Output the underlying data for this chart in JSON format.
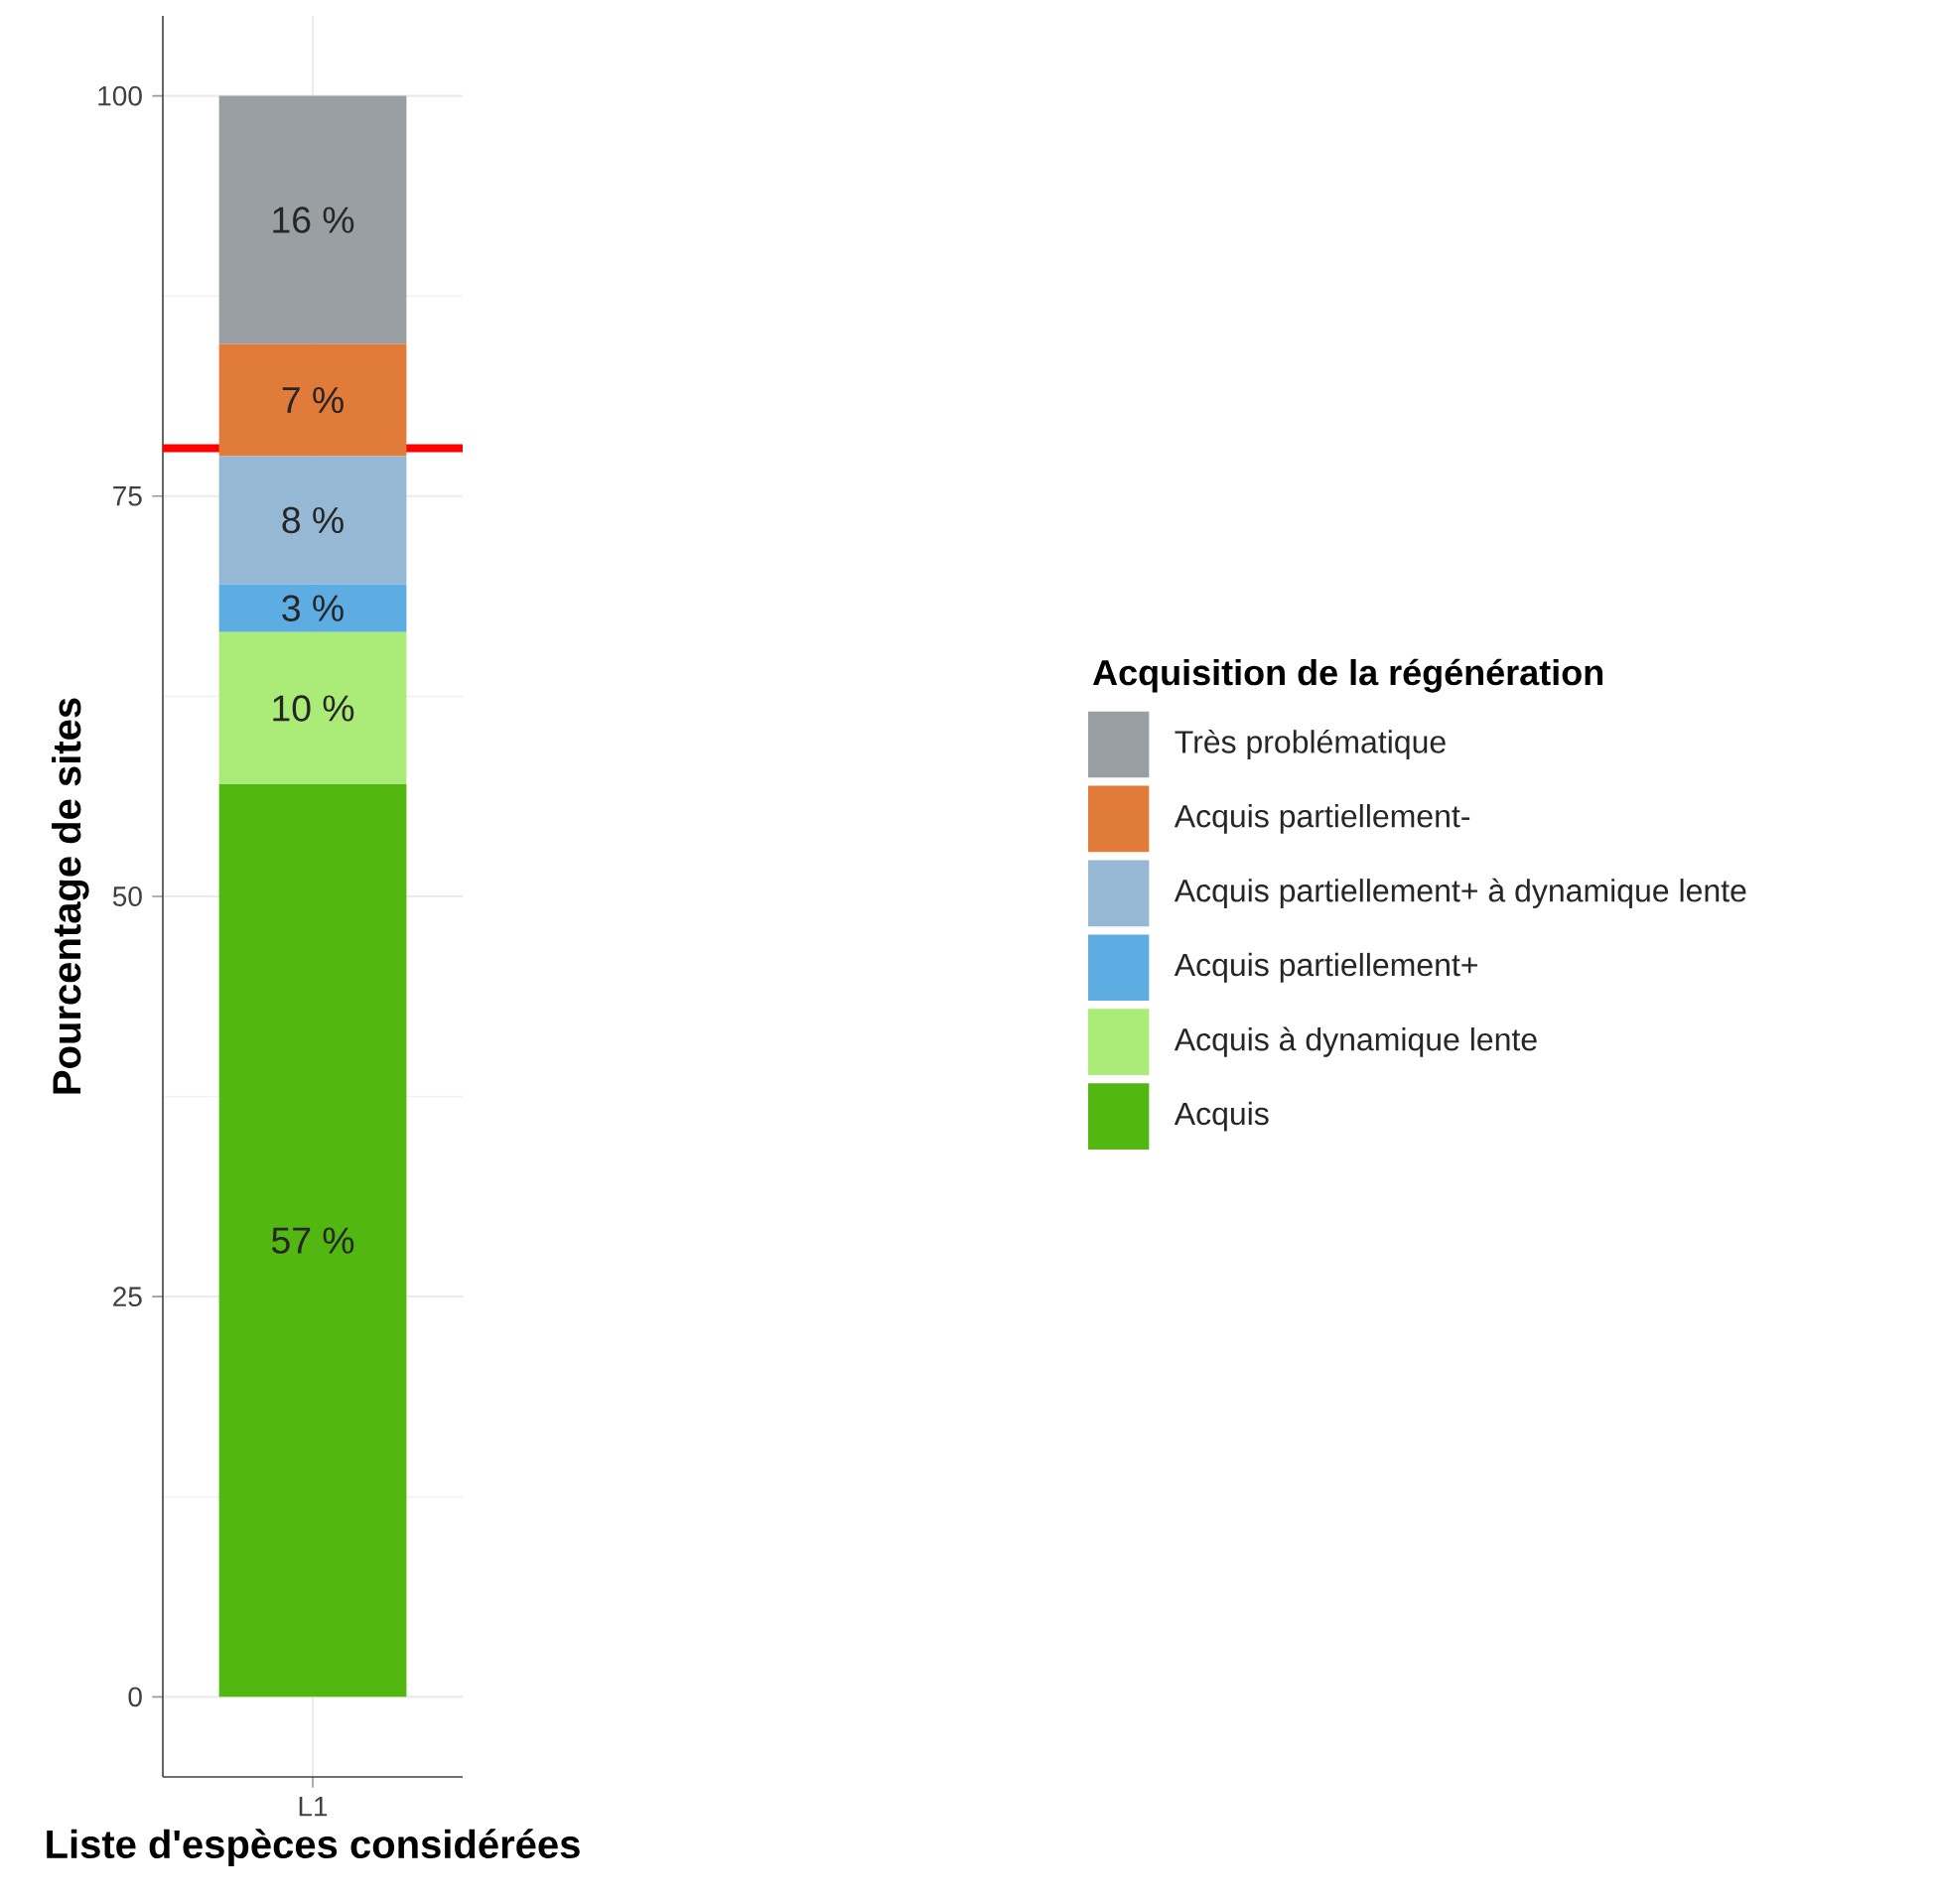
{
  "chart_data": {
    "type": "bar",
    "stacked": true,
    "xlabel": "Liste d'espèces considérées",
    "ylabel": "Pourcentage de sites",
    "legend_title": "Acquisition de la régénération",
    "categories": [
      "L1"
    ],
    "ylim": [
      -5,
      105
    ],
    "yticks": [
      0,
      25,
      50,
      75,
      100
    ],
    "grid": true,
    "legend": "right",
    "series": [
      {
        "name": "Acquis",
        "color": "#52b710",
        "values": [
          57
        ],
        "value_labels": [
          "57 %"
        ]
      },
      {
        "name": "Acquis à dynamique lente",
        "color": "#abeb77",
        "values": [
          9.5
        ],
        "value_labels": [
          "10 %"
        ]
      },
      {
        "name": "Acquis partiellement+",
        "color": "#5dade2",
        "values": [
          3
        ],
        "value_labels": [
          "3 %"
        ]
      },
      {
        "name": "Acquis partiellement+ à dynamique lente",
        "color": "#95b9d5",
        "values": [
          8
        ],
        "value_labels": [
          "8 %"
        ]
      },
      {
        "name": "Acquis partiellement-",
        "color": "#e07b39",
        "values": [
          7
        ],
        "value_labels": [
          "7 %"
        ]
      },
      {
        "name": "Très problématique",
        "color": "#999fa2",
        "values": [
          15.5
        ],
        "value_labels": [
          "16 %"
        ]
      }
    ],
    "ref_lines": [
      {
        "axis": "y",
        "value": 78,
        "color": "#ff0000"
      }
    ]
  }
}
